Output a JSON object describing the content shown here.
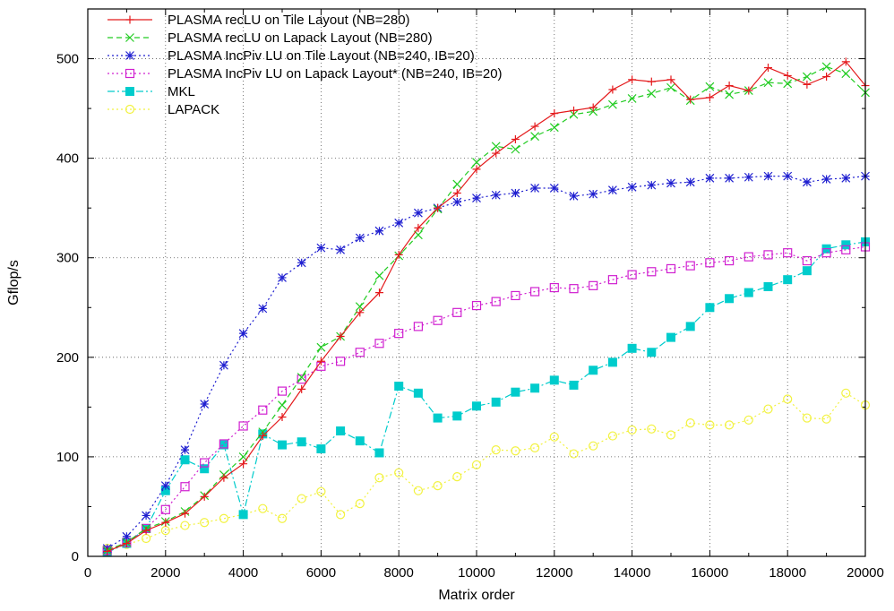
{
  "chart_data": {
    "type": "line",
    "xlabel": "Matrix order",
    "ylabel": "Gflop/s",
    "xlim": [
      0,
      20000
    ],
    "ylim": [
      0,
      550
    ],
    "xticks": [
      0,
      2000,
      4000,
      6000,
      8000,
      10000,
      12000,
      14000,
      16000,
      18000,
      20000
    ],
    "yticks": [
      0,
      100,
      200,
      300,
      400,
      500
    ],
    "grid": "dotted, on major ticks",
    "legend_position": "top-left",
    "series": [
      {
        "name": "PLASMA recLU on Tile Layout (NB=280)",
        "color": "#e41a1c",
        "marker": "plus",
        "dash": "solid",
        "x": [
          500,
          1000,
          1500,
          2000,
          2500,
          3000,
          3500,
          4000,
          4500,
          5000,
          5500,
          6000,
          6500,
          7000,
          7500,
          8000,
          8500,
          9000,
          9500,
          10000,
          10500,
          11000,
          11500,
          12000,
          12500,
          13000,
          13500,
          14000,
          14500,
          15000,
          15500,
          16000,
          16500,
          17000,
          17500,
          18000,
          18500,
          19000,
          19500,
          20000
        ],
        "y": [
          5,
          13,
          26,
          34,
          43,
          60,
          79,
          93,
          121,
          140,
          168,
          196,
          221,
          245,
          265,
          303,
          330,
          350,
          365,
          389,
          405,
          419,
          432,
          445,
          448,
          451,
          469,
          479,
          477,
          479,
          459,
          461,
          473,
          468,
          491,
          483,
          474,
          482,
          497,
          473
        ]
      },
      {
        "name": "PLASMA recLU on Lapack Layout (NB=280)",
        "color": "#22cc22",
        "marker": "cross",
        "dash": "dashed",
        "x": [
          500,
          1000,
          1500,
          2000,
          2500,
          3000,
          3500,
          4000,
          4500,
          5000,
          5500,
          6000,
          6500,
          7000,
          7500,
          8000,
          8500,
          9000,
          9500,
          10000,
          10500,
          11000,
          11500,
          12000,
          12500,
          13000,
          13500,
          14000,
          14500,
          15000,
          15500,
          16000,
          16500,
          17000,
          17500,
          18000,
          18500,
          19000,
          19500,
          20000
        ],
        "y": [
          6,
          14,
          28,
          35,
          45,
          61,
          82,
          100,
          125,
          152,
          180,
          210,
          221,
          251,
          282,
          302,
          323,
          349,
          374,
          396,
          412,
          409,
          422,
          431,
          444,
          447,
          454,
          460,
          465,
          471,
          458,
          472,
          464,
          468,
          476,
          475,
          482,
          492,
          485,
          466
        ]
      },
      {
        "name": "PLASMA IncPiv LU on Tile Layout (NB=240, IB=20)",
        "color": "#1f1fd0",
        "marker": "star",
        "dash": "dotted",
        "x": [
          500,
          1000,
          1500,
          2000,
          2500,
          3000,
          3500,
          4000,
          4500,
          5000,
          5500,
          6000,
          6500,
          7000,
          7500,
          8000,
          8500,
          9000,
          9500,
          10000,
          10500,
          11000,
          11500,
          12000,
          12500,
          13000,
          13500,
          14000,
          14500,
          15000,
          15500,
          16000,
          16500,
          17000,
          17500,
          18000,
          18500,
          19000,
          19500,
          20000
        ],
        "y": [
          8,
          20,
          41,
          71,
          107,
          153,
          192,
          224,
          249,
          280,
          295,
          310,
          308,
          320,
          327,
          335,
          345,
          350,
          356,
          360,
          363,
          365,
          370,
          370,
          362,
          364,
          368,
          371,
          373,
          375,
          376,
          380,
          380,
          381,
          382,
          382,
          376,
          379,
          380,
          382
        ]
      },
      {
        "name": "PLASMA IncPiv LU on Lapack Layout* (NB=240, IB=20)",
        "color": "#d020d0",
        "marker": "square-open",
        "dash": "dotted",
        "x": [
          500,
          1000,
          1500,
          2000,
          2500,
          3000,
          3500,
          4000,
          4500,
          5000,
          5500,
          6000,
          6500,
          7000,
          7500,
          8000,
          8500,
          9000,
          9500,
          10000,
          10500,
          11000,
          11500,
          12000,
          12500,
          13000,
          13500,
          14000,
          14500,
          15000,
          15500,
          16000,
          16500,
          17000,
          17500,
          18000,
          18500,
          19000,
          19500,
          20000
        ],
        "y": [
          6,
          14,
          28,
          47,
          70,
          94,
          113,
          131,
          147,
          166,
          178,
          191,
          196,
          205,
          214,
          224,
          231,
          237,
          245,
          252,
          256,
          262,
          266,
          270,
          269,
          272,
          278,
          283,
          286,
          289,
          292,
          295,
          297,
          301,
          303,
          305,
          297,
          305,
          308,
          311
        ]
      },
      {
        "name": "MKL",
        "color": "#00cccc",
        "marker": "square-filled",
        "dash": "dashdot",
        "x": [
          500,
          1000,
          1500,
          2000,
          2500,
          3000,
          3500,
          4000,
          4500,
          5000,
          5500,
          6000,
          6500,
          7000,
          7500,
          8000,
          8500,
          9000,
          9500,
          10000,
          10500,
          11000,
          11500,
          12000,
          12500,
          13000,
          13500,
          14000,
          14500,
          15000,
          15500,
          16000,
          16500,
          17000,
          17500,
          18000,
          18500,
          19000,
          19500,
          20000
        ],
        "y": [
          4,
          13,
          28,
          66,
          97,
          88,
          112,
          42,
          123,
          112,
          115,
          108,
          126,
          116,
          104,
          171,
          164,
          139,
          141,
          151,
          155,
          165,
          169,
          177,
          172,
          187,
          195,
          209,
          205,
          220,
          231,
          250,
          259,
          265,
          271,
          278,
          287,
          309,
          313,
          316
        ]
      },
      {
        "name": "LAPACK",
        "color": "#f2f240",
        "marker": "circle-open",
        "dash": "dotted",
        "x": [
          500,
          1000,
          1500,
          2000,
          2500,
          3000,
          3500,
          4000,
          4500,
          5000,
          5500,
          6000,
          6500,
          7000,
          7500,
          8000,
          8500,
          9000,
          9500,
          10000,
          10500,
          11000,
          11500,
          12000,
          12500,
          13000,
          13500,
          14000,
          14500,
          15000,
          15500,
          16000,
          16500,
          17000,
          17500,
          18000,
          18500,
          19000,
          19500,
          20000
        ],
        "y": [
          8,
          12,
          18,
          26,
          31,
          34,
          38,
          42,
          48,
          38,
          58,
          65,
          42,
          53,
          79,
          84,
          66,
          71,
          80,
          92,
          107,
          106,
          109,
          120,
          103,
          111,
          121,
          127,
          128,
          122,
          134,
          132,
          132,
          137,
          148,
          158,
          139,
          138,
          164,
          152
        ]
      }
    ]
  }
}
